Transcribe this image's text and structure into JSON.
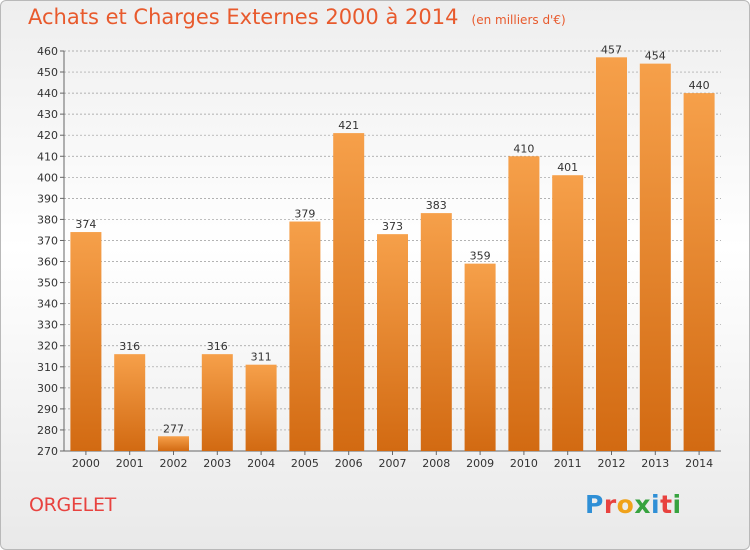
{
  "title": "Achats et Charges Externes 2000 à 2014",
  "unit_note": "(en milliers d'€)",
  "city": "ORGELET",
  "logo": {
    "letters": [
      "P",
      "r",
      "o",
      "x",
      "i",
      "t",
      "i"
    ],
    "colors": [
      "#2f8fd6",
      "#e8423f",
      "#f0a21a",
      "#37a33f",
      "#2f8fd6",
      "#e8423f",
      "#37a33f"
    ]
  },
  "colors": {
    "bar": "#f28c2a",
    "title": "#e85a2d",
    "city": "#e8423f",
    "grid": "#9a9a9a"
  },
  "chart_data": {
    "type": "bar",
    "categories": [
      "2000",
      "2001",
      "2002",
      "2003",
      "2004",
      "2005",
      "2006",
      "2007",
      "2008",
      "2009",
      "2010",
      "2011",
      "2012",
      "2013",
      "2014"
    ],
    "values": [
      374,
      316,
      277,
      316,
      311,
      379,
      421,
      373,
      383,
      359,
      410,
      401,
      457,
      454,
      440
    ],
    "ylim": [
      270,
      460
    ],
    "yticks": [
      270,
      280,
      290,
      300,
      310,
      320,
      330,
      340,
      350,
      360,
      370,
      380,
      390,
      400,
      410,
      420,
      430,
      440,
      450,
      460
    ],
    "grid": true,
    "legend": "none"
  }
}
